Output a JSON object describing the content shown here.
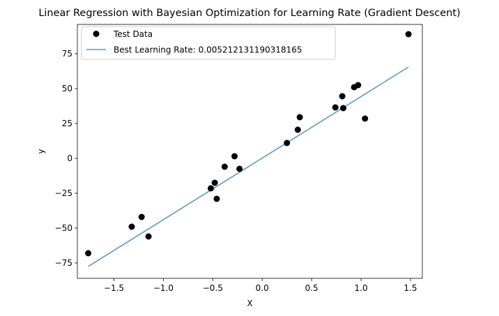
{
  "chart_data": {
    "type": "scatter",
    "title": "Linear Regression with Bayesian Optimization for Learning Rate (Gradient Descent)",
    "xlabel": "X",
    "ylabel": "y",
    "xlim": [
      -1.87,
      1.62
    ],
    "ylim": [
      -86,
      96
    ],
    "xticks": [
      -1.5,
      -1.0,
      -0.5,
      0.0,
      0.5,
      1.0,
      1.5
    ],
    "xtick_labels": [
      "−1.5",
      "−1.0",
      "−0.5",
      "0.0",
      "0.5",
      "1.0",
      "1.5"
    ],
    "yticks": [
      -75,
      -50,
      -25,
      0,
      25,
      50,
      75
    ],
    "ytick_labels": [
      "−75",
      "−50",
      "−25",
      "0",
      "25",
      "50",
      "75"
    ],
    "grid": false,
    "legend_position": "upper-left",
    "series": [
      {
        "name": "Test Data",
        "kind": "scatter",
        "color": "#000000",
        "x": [
          -1.76,
          -1.32,
          -1.22,
          -1.15,
          -0.52,
          -0.48,
          -0.46,
          -0.38,
          -0.28,
          -0.23,
          0.25,
          0.36,
          0.38,
          0.74,
          0.81,
          0.82,
          0.93,
          0.97,
          1.04,
          1.48
        ],
        "y": [
          -68,
          -49,
          -42,
          -56,
          -21.5,
          -17.5,
          -29,
          -6,
          1.5,
          -7.5,
          11,
          20.5,
          29.5,
          36.5,
          44.5,
          36,
          51,
          52.5,
          28.5,
          89
        ]
      },
      {
        "name": "Best Learning Rate: 0.005212131190318165",
        "kind": "line",
        "color": "#5a9ac8",
        "x": [
          -1.76,
          1.48
        ],
        "y": [
          -77.5,
          65.5
        ]
      }
    ]
  }
}
